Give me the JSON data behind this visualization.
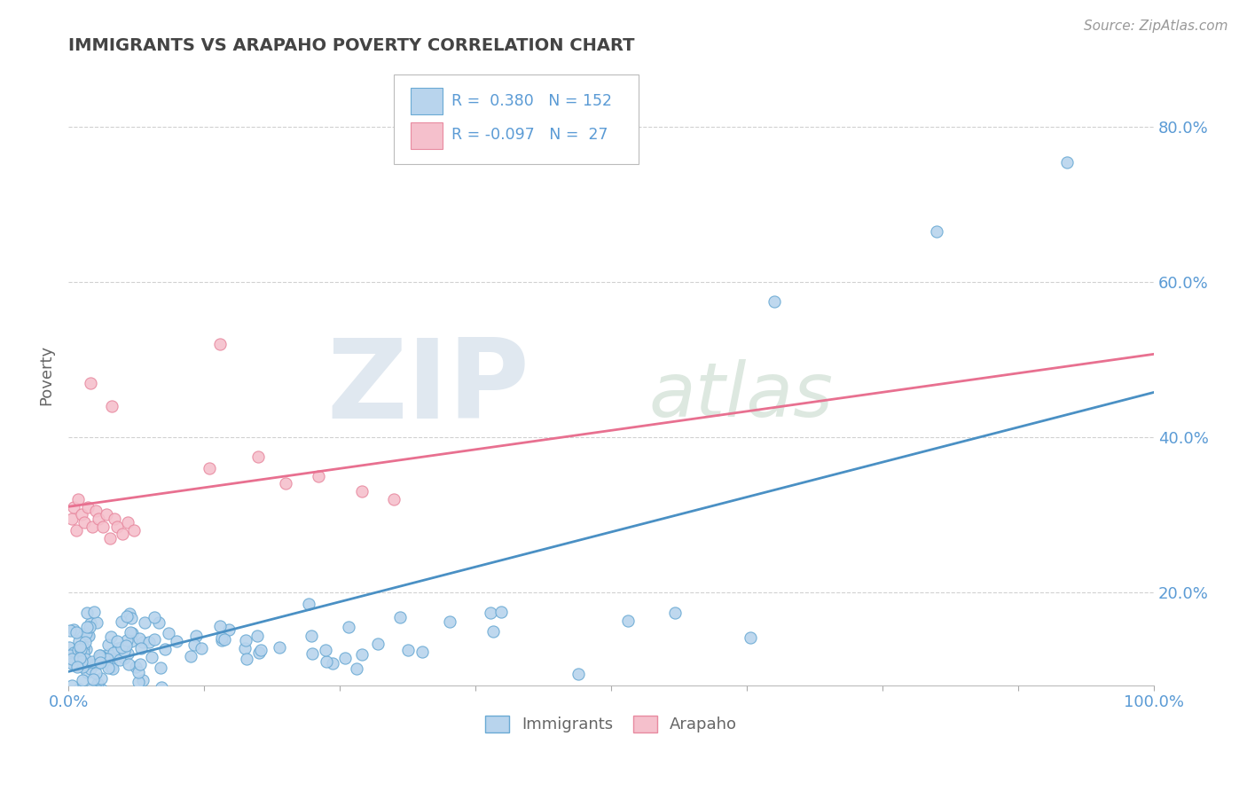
{
  "title": "IMMIGRANTS VS ARAPAHO POVERTY CORRELATION CHART",
  "source_text": "Source: ZipAtlas.com",
  "ylabel": "Poverty",
  "watermark_zip": "ZIP",
  "watermark_atlas": "atlas",
  "background_color": "#ffffff",
  "grid_color": "#cccccc",
  "immigrants_color": "#b8d4ed",
  "immigrants_edge_color": "#6aaad4",
  "arapaho_color": "#f5c0cc",
  "arapaho_edge_color": "#e88aa0",
  "immigrants_line_color": "#4a90c4",
  "arapaho_line_color": "#e87090",
  "legend_R1": "0.380",
  "legend_N1": "152",
  "legend_R2": "-0.097",
  "legend_N2": "27",
  "title_color": "#444444",
  "axis_label_color": "#5b9bd5",
  "source_color": "#999999",
  "ylabel_color": "#666666",
  "ytick_labels": [
    "20.0%",
    "40.0%",
    "60.0%",
    "80.0%"
  ],
  "ytick_values": [
    0.2,
    0.4,
    0.6,
    0.8
  ],
  "xlim": [
    0.0,
    1.0
  ],
  "ylim": [
    0.08,
    0.88
  ],
  "seed_immigrants": 7,
  "seed_arapaho": 42
}
